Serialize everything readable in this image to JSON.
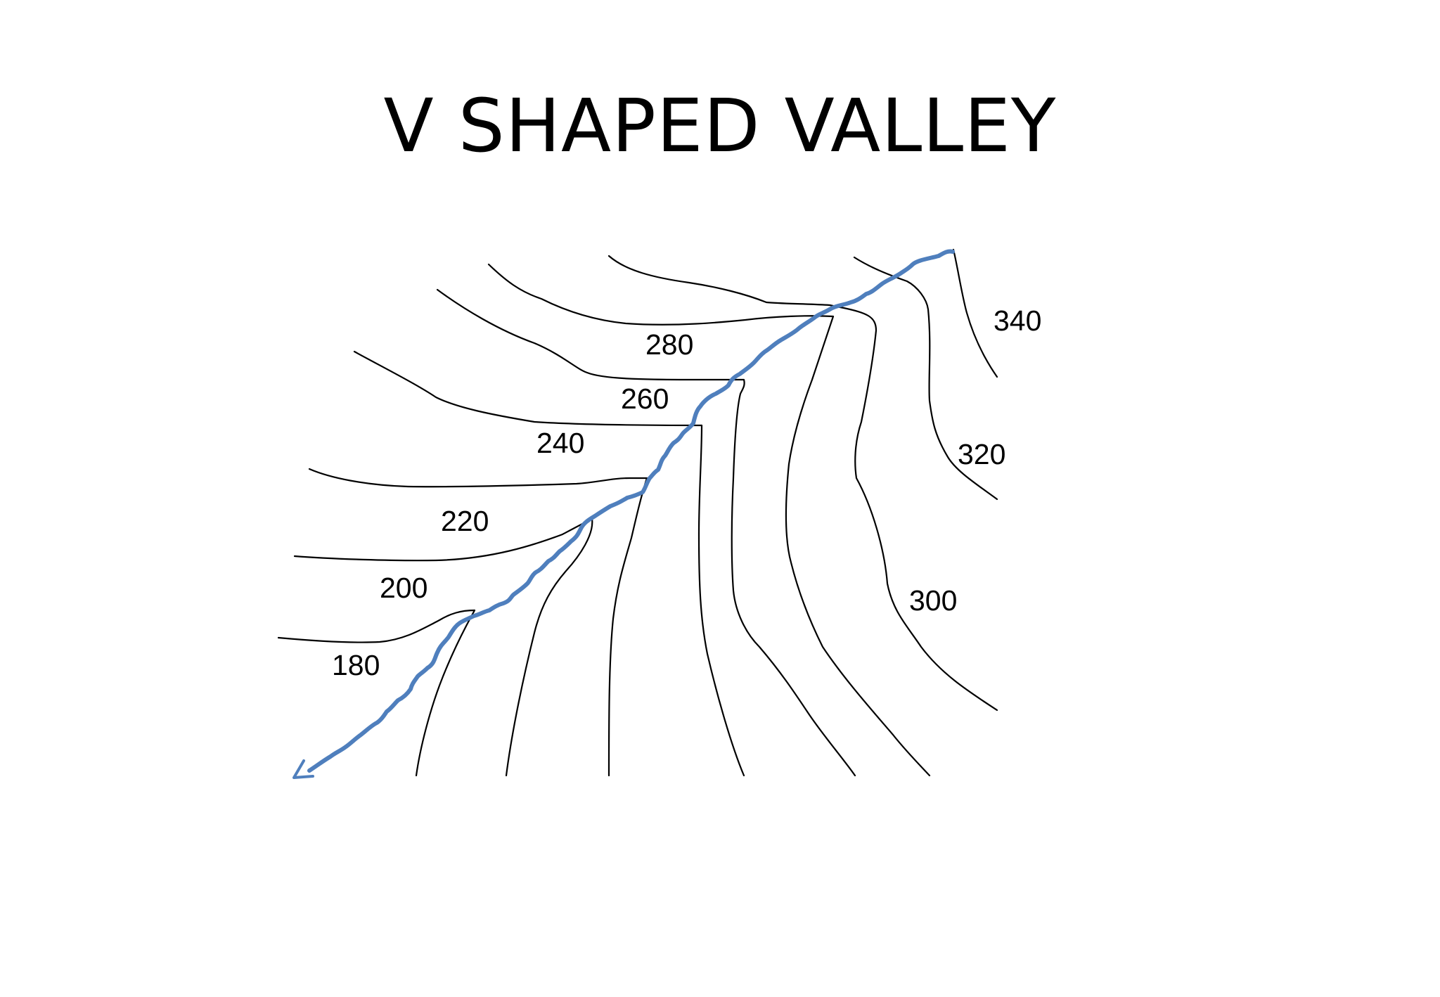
{
  "title": "V SHAPED VALLEY",
  "colors": {
    "river": "#4f7fbd",
    "contour": "#000000",
    "background": "#ffffff"
  },
  "contour_labels": {
    "c180": "180",
    "c200": "200",
    "c220": "220",
    "c240": "240",
    "c260": "260",
    "c280": "280",
    "c300": "300",
    "c320": "320",
    "c340": "340"
  }
}
